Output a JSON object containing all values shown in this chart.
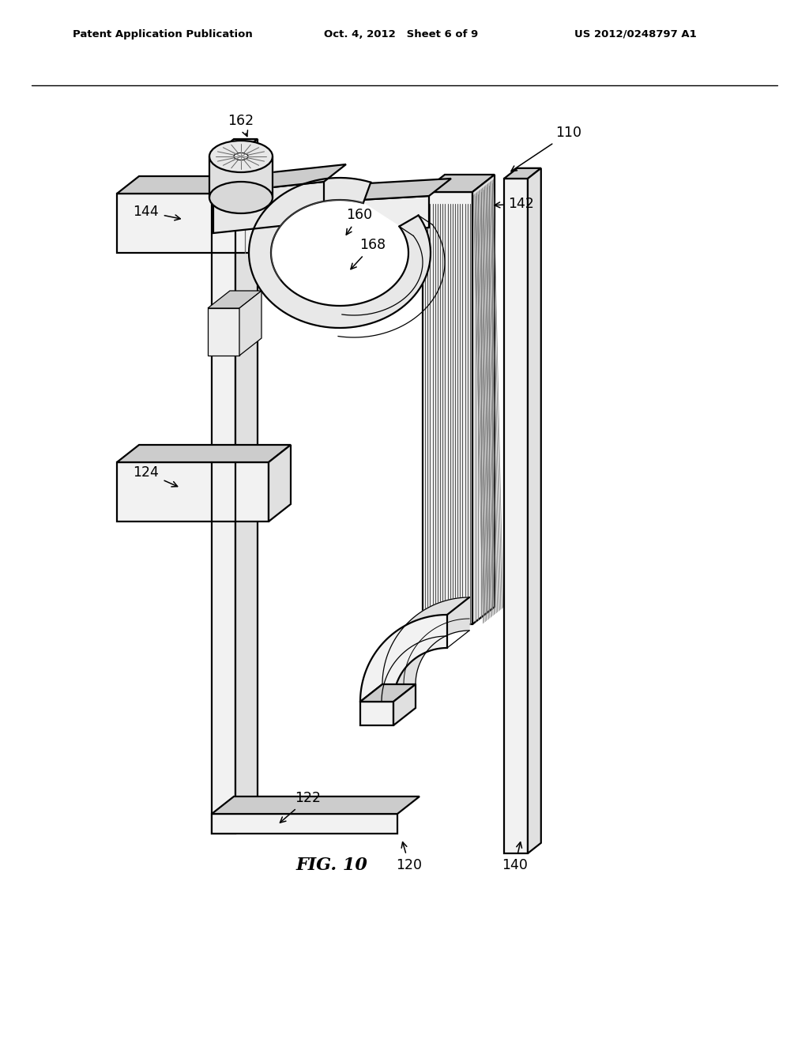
{
  "header_left": "Patent Application Publication",
  "header_mid": "Oct. 4, 2012   Sheet 6 of 9",
  "header_right": "US 2012/0248797 A1",
  "fig_label": "FIG. 10",
  "bg_color": "#ffffff"
}
